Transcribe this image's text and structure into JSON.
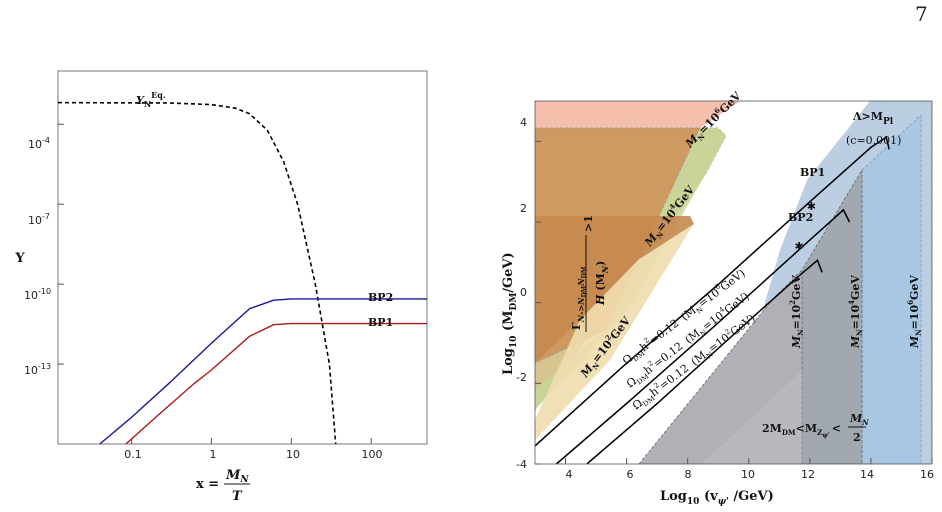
{
  "page_number": "7",
  "chart_data": [
    {
      "type": "line",
      "xscale": "log",
      "yscale": "log",
      "xlabel": "x = M_N / T",
      "ylabel": "Y",
      "xlim": [
        0.012,
        500
      ],
      "ylim": [
        1e-16,
        0.01
      ],
      "x_ticks": [
        "0.1",
        "1",
        "10",
        "100"
      ],
      "y_ticks": [
        "10^-4",
        "10^-7",
        "10^-10",
        "10^-13"
      ],
      "grid": false,
      "series": [
        {
          "name": "Y_N^Eq.",
          "color": "#000000",
          "style": "dashed",
          "x": [
            0.012,
            0.3,
            1,
            2,
            3,
            5,
            8,
            12,
            20,
            30,
            36
          ],
          "y": [
            0.00065,
            0.00063,
            0.00055,
            0.0004,
            0.00025,
            6e-05,
            4e-06,
            1e-07,
            1e-10,
            1e-13,
            1e-16
          ]
        },
        {
          "name": "BP2",
          "color": "#1a1a99",
          "style": "solid",
          "x": [
            0.04,
            0.1,
            0.3,
            1,
            3,
            6,
            10,
            100,
            500
          ],
          "y": [
            1e-16,
            1e-15,
            2e-14,
            6e-13,
            1.2e-11,
            2.5e-11,
            2.8e-11,
            2.8e-11,
            2.8e-11
          ]
        },
        {
          "name": "BP1",
          "color": "#aa1a1a",
          "style": "solid",
          "x": [
            0.085,
            0.2,
            0.6,
            1,
            3,
            6,
            10,
            100,
            500
          ],
          "y": [
            1e-16,
            1e-15,
            1.8e-14,
            6e-14,
            1.1e-12,
            3e-12,
            3.3e-12,
            3.3e-12,
            3.3e-12
          ]
        }
      ]
    },
    {
      "type": "area",
      "xlabel": "Log10 (v_ψ' /GeV)",
      "ylabel": "Log10 (M_DM/GeV)",
      "xlim": [
        3,
        16
      ],
      "ylim": [
        -4,
        5
      ],
      "x_ticks": [
        "4",
        "6",
        "8",
        "10",
        "12",
        "14",
        "16"
      ],
      "y_ticks": [
        "-4",
        "-2",
        "0",
        "2",
        "4"
      ],
      "regions": [
        {
          "name": "Λ > M_Pl (c=0.001)",
          "color": "#b7cbe0"
        },
        {
          "name": "M_N=10^6 GeV",
          "color": "#a6c5e0"
        },
        {
          "name": "M_N=10^4 GeV",
          "color": "#9aa3ad"
        },
        {
          "name": "M_N=10^2 GeV",
          "color": "#a8a8ae"
        },
        {
          "name": "Γ > H(M_N) 10^6",
          "color": "#f3b9a6"
        },
        {
          "name": "Γ > H(M_N) 10^4",
          "color": "#d9b58a"
        },
        {
          "name": "Γ > H(M_N) 10^2",
          "color": "#c99660"
        }
      ],
      "curves": [
        {
          "name": "Ω_DM h^2 = 0.12 (M_N=10^6 GeV)",
          "color": "#000000",
          "x": [
            3,
            6,
            9,
            12,
            14,
            14.5,
            14.6
          ],
          "y": [
            -3.55,
            -1.5,
            0.45,
            2.5,
            3.85,
            4.1,
            3.8
          ]
        },
        {
          "name": "Ω_DM h^2 = 0.12 (M_N=10^4 GeV)",
          "color": "#000000",
          "x": [
            3.7,
            6,
            9,
            12,
            13.1,
            13.3
          ],
          "y": [
            -4,
            -2.5,
            -0.5,
            1.55,
            2.3,
            2
          ]
        },
        {
          "name": "Ω_DM h^2 = 0.12 (M_N=10^2 GeV)",
          "color": "#000000",
          "x": [
            4.7,
            7,
            10,
            11.7,
            12.25,
            12.4
          ],
          "y": [
            -4,
            -2.5,
            -0.45,
            0.7,
            1.05,
            0.75
          ]
        }
      ],
      "points": [
        {
          "name": "BP1",
          "x": 12.05,
          "y": 2.4,
          "color": "#aa1a1a"
        },
        {
          "name": "BP2",
          "x": 11.65,
          "y": 1.4,
          "color": "#1a1a99"
        }
      ]
    }
  ],
  "left": {
    "eq_label_main": "Y",
    "eq_label_sub": "N",
    "eq_label_sup": "Eq.",
    "bp2": "BP2",
    "bp1": "BP1",
    "ylabel": "Y",
    "xlabel_x": "x =",
    "xlabel_num": "M",
    "xlabel_num_sub": "N",
    "xlabel_den": "T",
    "ytick_base": "10",
    "ytick_exps": [
      "-4",
      "-7",
      "-10",
      "-13"
    ],
    "xticks": [
      "0.1",
      "1",
      "10",
      "100"
    ]
  },
  "right": {
    "xticks": [
      "4",
      "6",
      "8",
      "10",
      "12",
      "14",
      "16"
    ],
    "yticks": [
      "-4",
      "-2",
      "0",
      "2",
      "4"
    ],
    "xlabel_main": "Log",
    "xlabel_sub": "10",
    "xlabel_rest": " (v",
    "xlabel_psi": "ψ'",
    "xlabel_end": " /GeV)",
    "ylabel_main": "Log",
    "ylabel_sub": "10",
    "ylabel_rest": " (M",
    "ylabel_dm": "DM",
    "ylabel_end": "/GeV)",
    "lambda_main": "Λ>M",
    "lambda_sub": "Pl",
    "lambda_c": "(c=0.001)",
    "mn6_top_main": "M",
    "mn6_top_sub": "N",
    "mn6_top_rest": "=10",
    "mn6_top_exp": "6",
    "mn6_top_unit": "GeV",
    "mn4_main": "M",
    "mn4_sub": "N",
    "mn4_rest": "=10",
    "mn4_exp": "4",
    "mn4_unit": "GeV",
    "mn2_main": "M",
    "mn2_sub": "N",
    "mn2_rest": "=10",
    "mn2_exp": "2",
    "mn2_unit": "GeV",
    "gamma_main": "Γ",
    "gamma_sub": "N->N",
    "gamma_sub2": "DM",
    "gamma_sub3": "N",
    "gamma_sub4": "DM",
    "gamma_gt": ">1",
    "gamma_den_h": "H",
    "gamma_den_open": "(M",
    "gamma_den_sub": "N",
    "gamma_den_close": ")",
    "omega6_a": "Ω",
    "omega6_b": "DM",
    "omega6_c": "h",
    "omega6_d": "2",
    "omega6_e": "=0.12",
    "omega6_f": "(M",
    "omega6_g": "N",
    "omega6_h": "=10",
    "omega6_i": "6",
    "omega6_j": "GeV)",
    "omega4_i": "4",
    "omega2_i": "2",
    "bp1": "BP1",
    "bp2": "BP2",
    "star": "✱",
    "vmn2": "M",
    "vmn_sub": "N",
    "vmn_rest": "=10",
    "vmn2_exp": "2",
    "vmn4_exp": "4",
    "vmn6_exp": "6",
    "vmn_unit": "GeV",
    "cond_a": "2M",
    "cond_b": "DM",
    "cond_c": "<M",
    "cond_d": "Z",
    "cond_e": "ψ'",
    "cond_f": "<",
    "cond_num": "M",
    "cond_num_sub": "N",
    "cond_den": "2"
  }
}
